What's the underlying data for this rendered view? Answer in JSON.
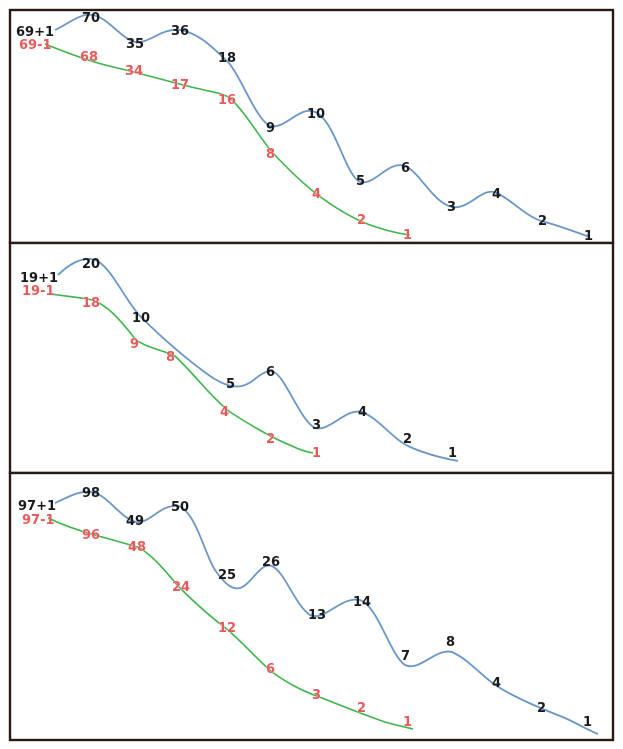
{
  "panels": [
    {
      "id": "panel-69",
      "plus_start": "69+1",
      "minus_start": "69-1",
      "plus_sequence": [
        "70",
        "35",
        "36",
        "18",
        "9",
        "10",
        "5",
        "6",
        "3",
        "4",
        "2",
        "1"
      ],
      "minus_sequence": [
        "68",
        "34",
        "17",
        "16",
        "8",
        "4",
        "2",
        "1"
      ]
    },
    {
      "id": "panel-19",
      "plus_start": "19+1",
      "minus_start": "19-1",
      "plus_sequence": [
        "20",
        "10",
        "5",
        "6",
        "3",
        "4",
        "2",
        "1"
      ],
      "minus_sequence": [
        "18",
        "9",
        "8",
        "4",
        "2",
        "1"
      ]
    },
    {
      "id": "panel-97",
      "plus_start": "97+1",
      "minus_start": "97-1",
      "plus_sequence": [
        "98",
        "49",
        "50",
        "25",
        "26",
        "13",
        "14",
        "7",
        "8",
        "4",
        "2",
        "1"
      ],
      "minus_sequence": [
        "96",
        "48",
        "24",
        "12",
        "6",
        "3",
        "2",
        "1"
      ]
    }
  ],
  "colors": {
    "plus_curve": "#6a96c8",
    "minus_curve": "#3cb54a",
    "plus_text": "#1a1a1a",
    "minus_text": "#e8595c",
    "frame": "#2b1a14"
  }
}
